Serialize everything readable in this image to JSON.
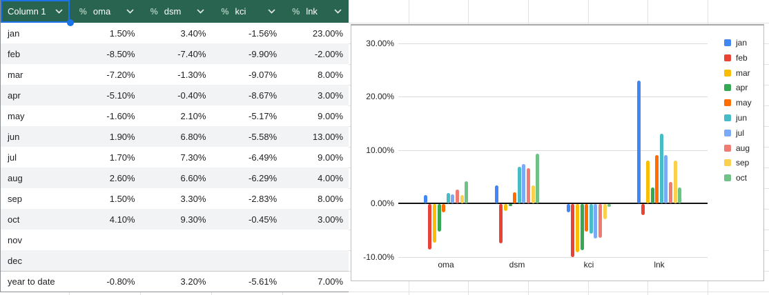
{
  "table": {
    "columns": [
      {
        "label": "Column 1",
        "type": "text",
        "selected": true
      },
      {
        "label": "oma",
        "type": "percent",
        "selected": false
      },
      {
        "label": "dsm",
        "type": "percent",
        "selected": false
      },
      {
        "label": "kci",
        "type": "percent",
        "selected": false
      },
      {
        "label": "lnk",
        "type": "percent",
        "selected": false
      }
    ],
    "percent_icon": "%",
    "header_bg": "#286450",
    "selection_color": "#1a73e8",
    "rows": [
      {
        "label": "jan",
        "values": [
          "1.50%",
          "3.40%",
          "-1.56%",
          "23.00%"
        ],
        "footer": false
      },
      {
        "label": "feb",
        "values": [
          "-8.50%",
          "-7.40%",
          "-9.90%",
          "-2.00%"
        ],
        "footer": false
      },
      {
        "label": "mar",
        "values": [
          "-7.20%",
          "-1.30%",
          "-9.07%",
          "8.00%"
        ],
        "footer": false
      },
      {
        "label": "apr",
        "values": [
          "-5.10%",
          "-0.40%",
          "-8.67%",
          "3.00%"
        ],
        "footer": false
      },
      {
        "label": "may",
        "values": [
          "-1.60%",
          "2.10%",
          "-5.17%",
          "9.00%"
        ],
        "footer": false
      },
      {
        "label": "jun",
        "values": [
          "1.90%",
          "6.80%",
          "-5.58%",
          "13.00%"
        ],
        "footer": false
      },
      {
        "label": "jul",
        "values": [
          "1.70%",
          "7.30%",
          "-6.49%",
          "9.00%"
        ],
        "footer": false
      },
      {
        "label": "aug",
        "values": [
          "2.60%",
          "6.60%",
          "-6.29%",
          "4.00%"
        ],
        "footer": false
      },
      {
        "label": "sep",
        "values": [
          "1.50%",
          "3.30%",
          "-2.83%",
          "8.00%"
        ],
        "footer": false
      },
      {
        "label": "oct",
        "values": [
          "4.10%",
          "9.30%",
          "-0.45%",
          "3.00%"
        ],
        "footer": false
      },
      {
        "label": "nov",
        "values": [
          "",
          "",
          "",
          ""
        ],
        "footer": false
      },
      {
        "label": "dec",
        "values": [
          "",
          "",
          "",
          ""
        ],
        "footer": false
      },
      {
        "label": "year to date",
        "values": [
          "-0.80%",
          "3.20%",
          "-5.61%",
          "7.00%"
        ],
        "footer": true
      }
    ]
  },
  "chart_data": {
    "type": "bar",
    "categories": [
      "oma",
      "dsm",
      "kci",
      "lnk"
    ],
    "series": [
      {
        "name": "jan",
        "color": "#4285F4",
        "values": [
          1.5,
          3.4,
          -1.56,
          23.0
        ]
      },
      {
        "name": "feb",
        "color": "#EA4335",
        "values": [
          -8.5,
          -7.4,
          -9.9,
          -2.0
        ]
      },
      {
        "name": "mar",
        "color": "#FBBC04",
        "values": [
          -7.2,
          -1.3,
          -9.07,
          8.0
        ]
      },
      {
        "name": "apr",
        "color": "#34A853",
        "values": [
          -5.1,
          -0.4,
          -8.67,
          3.0
        ]
      },
      {
        "name": "may",
        "color": "#FF6D01",
        "values": [
          -1.6,
          2.1,
          -5.17,
          9.0
        ]
      },
      {
        "name": "jun",
        "color": "#46BDC6",
        "values": [
          1.9,
          6.8,
          -5.58,
          13.0
        ]
      },
      {
        "name": "jul",
        "color": "#7BAAF7",
        "values": [
          1.7,
          7.3,
          -6.49,
          9.0
        ]
      },
      {
        "name": "aug",
        "color": "#F07B72",
        "values": [
          2.6,
          6.6,
          -6.29,
          4.0
        ]
      },
      {
        "name": "sep",
        "color": "#FCD04F",
        "values": [
          1.5,
          3.3,
          -2.83,
          8.0
        ]
      },
      {
        "name": "oct",
        "color": "#71C287",
        "values": [
          4.1,
          9.3,
          -0.45,
          3.0
        ]
      }
    ],
    "y_ticks": [
      {
        "value": 30,
        "label": "30.00%"
      },
      {
        "value": 20,
        "label": "20.00%"
      },
      {
        "value": 10,
        "label": "10.00%"
      },
      {
        "value": 0,
        "label": "0.00%"
      },
      {
        "value": -10,
        "label": "-10.00%"
      }
    ],
    "ylim": [
      -10,
      30
    ],
    "title": "",
    "xlabel": "",
    "ylabel": "",
    "grid": true,
    "legend_position": "right"
  }
}
